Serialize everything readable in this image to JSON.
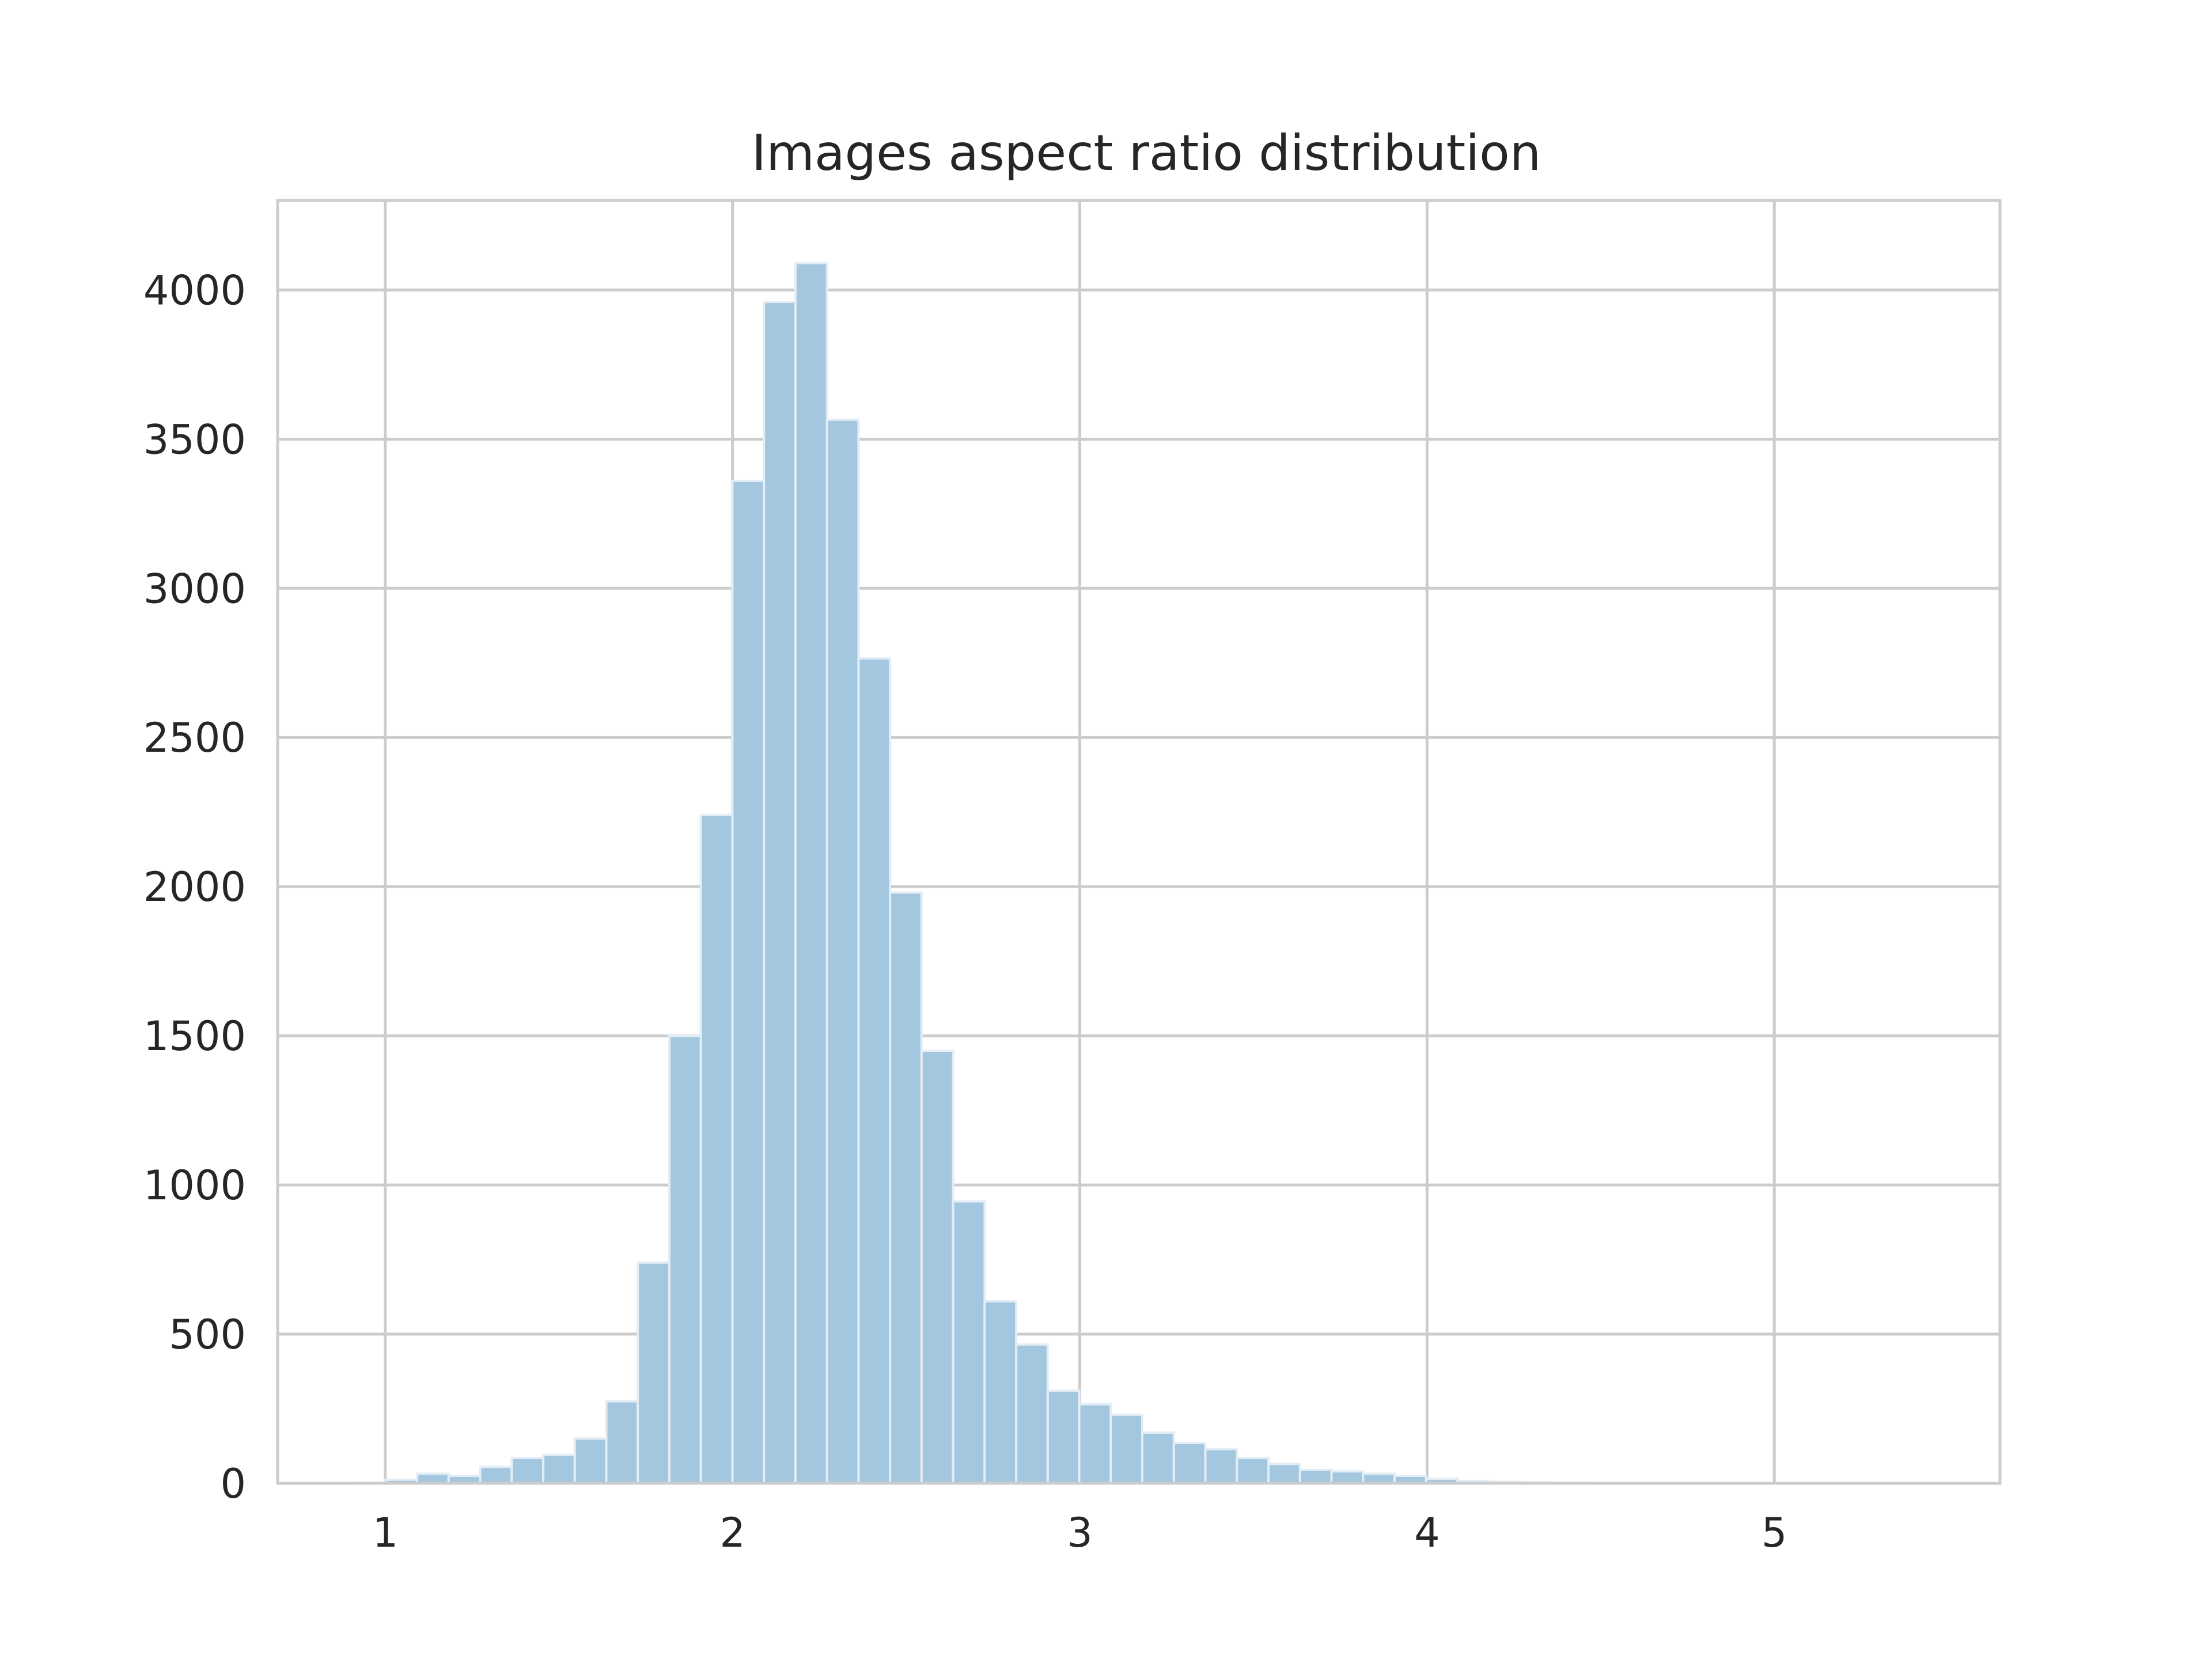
{
  "chart_data": {
    "type": "bar",
    "title": "Images aspect ratio distribution",
    "xlabel": "",
    "ylabel": "",
    "xlim": [
      0.69,
      5.65
    ],
    "ylim": [
      0,
      4300
    ],
    "xticks": [
      1,
      2,
      3,
      4,
      5
    ],
    "yticks": [
      0,
      500,
      1000,
      1500,
      2000,
      2500,
      3000,
      3500,
      4000
    ],
    "grid": true,
    "bar_color": "#a3c7df",
    "bar_edge_color": "#e3edf5",
    "bin_width": 0.0908,
    "bin_start": 0.91,
    "values": [
      2,
      12,
      32,
      25,
      55,
      85,
      95,
      150,
      275,
      740,
      1500,
      2240,
      3360,
      3960,
      4090,
      3565,
      2765,
      1980,
      1450,
      945,
      610,
      465,
      310,
      265,
      230,
      170,
      135,
      115,
      85,
      65,
      45,
      40,
      32,
      25,
      15,
      8,
      5,
      3,
      2,
      1,
      1,
      1,
      1,
      1,
      1,
      1,
      1,
      1,
      1,
      1
    ]
  },
  "colors": {
    "grid": "#cccccc",
    "axes_edge": "#cccccc",
    "text": "#262626"
  }
}
